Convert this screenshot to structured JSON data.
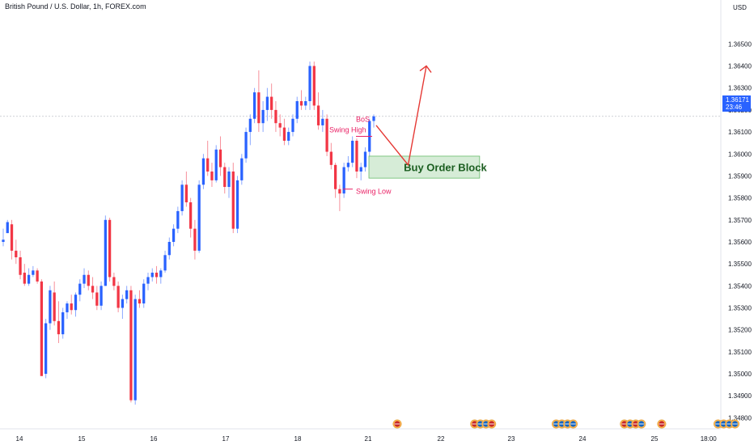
{
  "chart_data": {
    "type": "candlestick",
    "title": "British Pound / U.S. Dollar, 1h, FOREX.com",
    "currency": "USD",
    "ylim": [
      1.3475,
      1.367
    ],
    "y_ticks": [
      "1.36500",
      "1.36400",
      "1.36300",
      "1.36200",
      "1.36100",
      "1.36000",
      "1.35900",
      "1.35800",
      "1.35700",
      "1.35600",
      "1.35500",
      "1.35400",
      "1.35300",
      "1.35200",
      "1.35100",
      "1.35000",
      "1.34900",
      "1.34800"
    ],
    "x_ticks": [
      {
        "label": "14",
        "day": 14
      },
      {
        "label": "15",
        "day": 15
      },
      {
        "label": "16",
        "day": 16
      },
      {
        "label": "17",
        "day": 17
      },
      {
        "label": "18",
        "day": 18
      },
      {
        "label": "21",
        "day": 21
      },
      {
        "label": "22",
        "day": 22
      },
      {
        "label": "23",
        "day": 23
      },
      {
        "label": "24",
        "day": 24
      },
      {
        "label": "25",
        "day": 25
      },
      {
        "label": "18:00",
        "day": 25.75
      }
    ],
    "last_price": "1.36171",
    "countdown": "23:46",
    "candles": [
      [
        1.356,
        1.3566,
        1.3558,
        1.3561
      ],
      [
        1.3564,
        1.357,
        1.3564,
        1.3569
      ],
      [
        1.3568,
        1.357,
        1.3552,
        1.3556
      ],
      [
        1.3556,
        1.3561,
        1.355,
        1.3553
      ],
      [
        1.3553,
        1.3556,
        1.3543,
        1.3545
      ],
      [
        1.3546,
        1.355,
        1.354,
        1.3541
      ],
      [
        1.3541,
        1.3548,
        1.354,
        1.3545
      ],
      [
        1.3545,
        1.3549,
        1.3544,
        1.3547
      ],
      [
        1.3547,
        1.3548,
        1.3541,
        1.3542
      ],
      [
        1.3542,
        1.3543,
        1.35,
        1.3499
      ],
      [
        1.35,
        1.3525,
        1.3498,
        1.3523
      ],
      [
        1.3523,
        1.354,
        1.352,
        1.3538
      ],
      [
        1.3537,
        1.3542,
        1.3522,
        1.3524
      ],
      [
        1.3524,
        1.3533,
        1.3514,
        1.3518
      ],
      [
        1.3518,
        1.353,
        1.3516,
        1.3528
      ],
      [
        1.3528,
        1.3533,
        1.3525,
        1.3532
      ],
      [
        1.3532,
        1.3536,
        1.3527,
        1.3529
      ],
      [
        1.3529,
        1.3537,
        1.3526,
        1.3536
      ],
      [
        1.3536,
        1.3543,
        1.3533,
        1.3541
      ],
      [
        1.3541,
        1.3548,
        1.3539,
        1.3545
      ],
      [
        1.3545,
        1.3547,
        1.3538,
        1.354
      ],
      [
        1.354,
        1.3544,
        1.3534,
        1.3537
      ],
      [
        1.3537,
        1.354,
        1.3529,
        1.3531
      ],
      [
        1.3531,
        1.3542,
        1.3529,
        1.354
      ],
      [
        1.354,
        1.3572,
        1.354,
        1.357
      ],
      [
        1.357,
        1.3571,
        1.3542,
        1.3544
      ],
      [
        1.3544,
        1.3546,
        1.3538,
        1.354
      ],
      [
        1.354,
        1.3542,
        1.3528,
        1.353
      ],
      [
        1.353,
        1.3536,
        1.3525,
        1.3534
      ],
      [
        1.3534,
        1.354,
        1.3532,
        1.3538
      ],
      [
        1.3538,
        1.354,
        1.3487,
        1.3488
      ],
      [
        1.3488,
        1.3536,
        1.3486,
        1.3534
      ],
      [
        1.3534,
        1.3538,
        1.353,
        1.3532
      ],
      [
        1.3532,
        1.3543,
        1.353,
        1.3541
      ],
      [
        1.3541,
        1.3546,
        1.3538,
        1.3544
      ],
      [
        1.3544,
        1.3548,
        1.3542,
        1.3546
      ],
      [
        1.3546,
        1.3549,
        1.3541,
        1.3544
      ],
      [
        1.3544,
        1.3548,
        1.3541,
        1.3547
      ],
      [
        1.3547,
        1.3556,
        1.3546,
        1.3554
      ],
      [
        1.3554,
        1.3562,
        1.3552,
        1.356
      ],
      [
        1.356,
        1.3568,
        1.3558,
        1.3566
      ],
      [
        1.3566,
        1.3576,
        1.3564,
        1.3574
      ],
      [
        1.3574,
        1.3588,
        1.3572,
        1.3586
      ],
      [
        1.3586,
        1.3592,
        1.3576,
        1.3578
      ],
      [
        1.3578,
        1.358,
        1.3562,
        1.3566
      ],
      [
        1.3566,
        1.357,
        1.3552,
        1.3556
      ],
      [
        1.3556,
        1.3588,
        1.3555,
        1.3586
      ],
      [
        1.3586,
        1.36,
        1.3584,
        1.3598
      ],
      [
        1.3598,
        1.3606,
        1.359,
        1.3592
      ],
      [
        1.3592,
        1.3596,
        1.3585,
        1.3588
      ],
      [
        1.3588,
        1.3604,
        1.3587,
        1.3602
      ],
      [
        1.3602,
        1.3608,
        1.359,
        1.3594
      ],
      [
        1.3594,
        1.3596,
        1.3582,
        1.3585
      ],
      [
        1.3585,
        1.3594,
        1.358,
        1.3592
      ],
      [
        1.3592,
        1.3596,
        1.3564,
        1.3566
      ],
      [
        1.3566,
        1.359,
        1.3564,
        1.3588
      ],
      [
        1.3588,
        1.36,
        1.3586,
        1.3598
      ],
      [
        1.3598,
        1.3612,
        1.3596,
        1.361
      ],
      [
        1.361,
        1.3618,
        1.3604,
        1.3616
      ],
      [
        1.3616,
        1.363,
        1.3614,
        1.3628
      ],
      [
        1.3628,
        1.3638,
        1.361,
        1.3614
      ],
      [
        1.3614,
        1.3624,
        1.361,
        1.362
      ],
      [
        1.362,
        1.363,
        1.3615,
        1.3626
      ],
      [
        1.3626,
        1.3632,
        1.3616,
        1.362
      ],
      [
        1.362,
        1.3624,
        1.361,
        1.3614
      ],
      [
        1.3614,
        1.3618,
        1.3608,
        1.3612
      ],
      [
        1.3612,
        1.3616,
        1.3604,
        1.3606
      ],
      [
        1.3606,
        1.3612,
        1.3604,
        1.361
      ],
      [
        1.361,
        1.3618,
        1.3608,
        1.3616
      ],
      [
        1.3616,
        1.3626,
        1.3614,
        1.3624
      ],
      [
        1.3624,
        1.3629,
        1.362,
        1.3622
      ],
      [
        1.3622,
        1.3626,
        1.362,
        1.3624
      ],
      [
        1.3624,
        1.3642,
        1.362,
        1.364
      ],
      [
        1.364,
        1.3642,
        1.362,
        1.3622
      ],
      [
        1.3622,
        1.3628,
        1.3611,
        1.3613
      ],
      [
        1.3613,
        1.362,
        1.361,
        1.3616
      ],
      [
        1.3616,
        1.3618,
        1.3599,
        1.3601
      ],
      [
        1.3601,
        1.3605,
        1.3593,
        1.3595
      ],
      [
        1.3595,
        1.3596,
        1.358,
        1.3584
      ],
      [
        1.3584,
        1.3586,
        1.3574,
        1.3582
      ],
      [
        1.3582,
        1.3596,
        1.358,
        1.3594
      ],
      [
        1.3594,
        1.3599,
        1.3592,
        1.3596
      ],
      [
        1.3596,
        1.3608,
        1.3594,
        1.3606
      ],
      [
        1.3606,
        1.3607,
        1.3589,
        1.3592
      ],
      [
        1.3592,
        1.3596,
        1.3588,
        1.3594
      ],
      [
        1.3594,
        1.3603,
        1.3592,
        1.3601
      ],
      [
        1.3601,
        1.3616,
        1.3599,
        1.3615
      ],
      [
        1.3615,
        1.3618,
        1.3612,
        1.36171
      ]
    ],
    "annotations": {
      "bos": "BoS",
      "swing_high": "Swing High",
      "swing_low": "Swing Low",
      "order_block": "Buy Order Block",
      "swing_high_price": 1.3608,
      "swing_low_price": 1.3584,
      "order_block_range": [
        1.3589,
        1.3599
      ],
      "projection_path": [
        {
          "day": 21.1,
          "price": 1.3613
        },
        {
          "day": 21.55,
          "price": 1.3595
        },
        {
          "day": 21.8,
          "price": 1.364
        }
      ]
    },
    "event_markers": [
      {
        "day": 21.4,
        "flags": [
          "uk"
        ]
      },
      {
        "day": 22.6,
        "flags": [
          "uk",
          "us",
          "us",
          "uk"
        ]
      },
      {
        "day": 23.75,
        "flags": [
          "us",
          "us",
          "us",
          "us"
        ]
      },
      {
        "day": 24.7,
        "flags": [
          "uk",
          "us",
          "uk",
          "us"
        ]
      },
      {
        "day": 25.1,
        "flags": [
          "uk"
        ]
      },
      {
        "day": 26.0,
        "flags": [
          "us",
          "us",
          "us",
          "us"
        ]
      }
    ],
    "colors": {
      "up": "#2962ff",
      "down": "#f23645",
      "up_wick": "#8aa8ff",
      "down_wick": "#f7909a",
      "order_block_fill": "#c8e6c9",
      "order_block_border": "#66bb6a",
      "arrow": "#e53935",
      "badge": "#2962ff"
    }
  }
}
